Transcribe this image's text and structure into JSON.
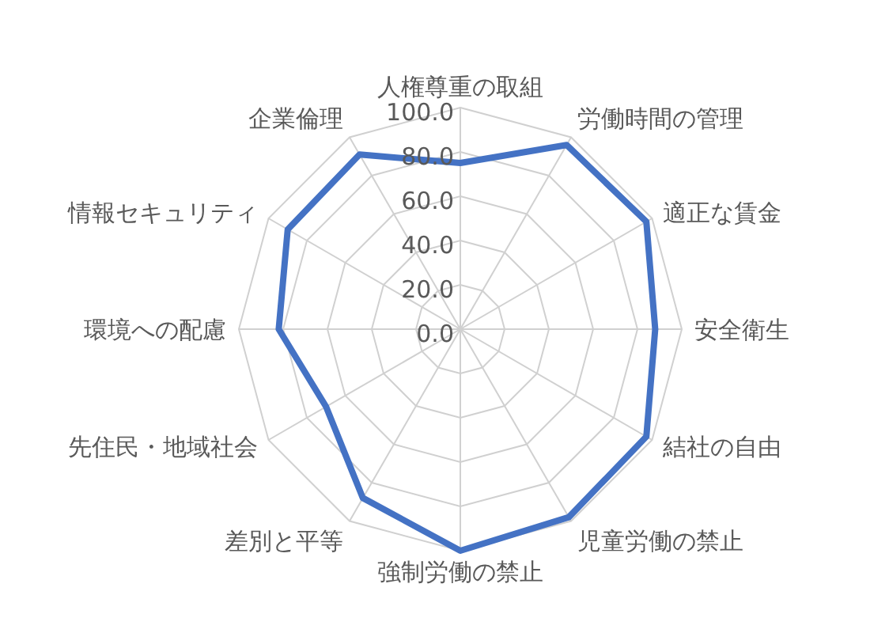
{
  "chart_data": {
    "type": "radar",
    "categories": [
      "人権尊重の取組",
      "労働時間の管理",
      "適正な賃金",
      "安全衛生",
      "結社の自由",
      "児童労働の禁止",
      "強制労働の禁止",
      "差別と平等",
      "先住民・地域社会",
      "環境への配慮",
      "情報セキュリティ",
      "企業倫理"
    ],
    "series": [
      {
        "color": "#4472c4",
        "values": [
          75,
          96,
          97,
          88,
          97,
          98,
          100,
          88,
          70,
          82,
          90,
          91
        ]
      }
    ],
    "ylim": [
      0,
      100
    ],
    "yticks": [
      {
        "value": 0,
        "label": "0.0"
      },
      {
        "value": 20,
        "label": "20.0"
      },
      {
        "value": 40,
        "label": "40.0"
      },
      {
        "value": 60,
        "label": "60.0"
      },
      {
        "value": 80,
        "label": "80.0"
      },
      {
        "value": 100,
        "label": "100.0"
      }
    ],
    "grid": true,
    "legend": false,
    "marker": "none"
  }
}
